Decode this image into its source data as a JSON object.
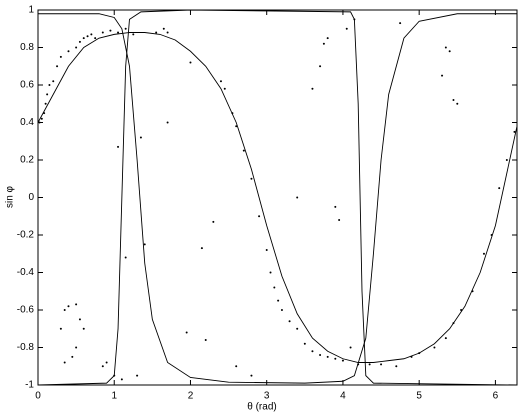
{
  "chart_data": {
    "type": "scatter",
    "xlabel": "θ (rad)",
    "ylabel": "sin φ",
    "xlim": [
      0,
      6.2832
    ],
    "ylim": [
      -1,
      1
    ],
    "xticks": [
      0,
      1,
      2,
      3,
      4,
      5,
      6
    ],
    "yticks": [
      -1,
      -0.8,
      -0.6,
      -0.4,
      -0.2,
      0,
      0.2,
      0.4,
      0.6,
      0.8,
      1
    ],
    "color": "#000000",
    "points": {
      "x": [
        0.02,
        0.05,
        0.08,
        0.1,
        0.12,
        0.15,
        0.2,
        0.25,
        0.3,
        0.4,
        0.5,
        0.55,
        0.6,
        0.65,
        0.7,
        0.75,
        0.85,
        0.95,
        1.05,
        1.15,
        1.25,
        1.55,
        1.65,
        1.7,
        2.0,
        2.4,
        2.45,
        2.55,
        2.6,
        2.7,
        2.8,
        2.9,
        3.0,
        3.05,
        3.1,
        3.15,
        3.2,
        3.3,
        3.4,
        3.5,
        3.6,
        3.7,
        3.8,
        3.9,
        4.0,
        4.2,
        4.35,
        4.5,
        4.9,
        5.0,
        5.2,
        5.35,
        5.45,
        5.55,
        5.7,
        5.85,
        5.95,
        6.05,
        6.15,
        6.25,
        0.35,
        0.4,
        0.3,
        0.45,
        0.5,
        0.5,
        0.55,
        0.6,
        0.35,
        0.85,
        0.9,
        1.0,
        1.1,
        1.05,
        1.15,
        1.35,
        1.4,
        1.3,
        1.7,
        2.15,
        2.3,
        2.6,
        2.8,
        1.95,
        2.2,
        3.4,
        3.6,
        3.7,
        3.75,
        3.8,
        3.9,
        3.95,
        4.05,
        4.15,
        4.75,
        5.3,
        5.35,
        5.4,
        5.45,
        5.5,
        4.1,
        4.7
      ],
      "values": [
        0.4,
        0.42,
        0.45,
        0.5,
        0.55,
        0.6,
        0.62,
        0.7,
        0.75,
        0.78,
        0.8,
        0.83,
        0.85,
        0.86,
        0.87,
        0.85,
        0.88,
        0.89,
        0.88,
        0.9,
        0.87,
        0.88,
        0.9,
        0.88,
        0.72,
        0.62,
        0.58,
        0.45,
        0.38,
        0.25,
        0.1,
        -0.1,
        -0.28,
        -0.4,
        -0.48,
        -0.55,
        -0.6,
        -0.66,
        -0.7,
        -0.78,
        -0.82,
        -0.84,
        -0.85,
        -0.86,
        -0.87,
        -0.89,
        -0.89,
        -0.89,
        -0.85,
        -0.83,
        -0.8,
        -0.75,
        -0.67,
        -0.6,
        -0.5,
        -0.3,
        -0.2,
        0.05,
        0.2,
        0.35,
        -0.6,
        -0.58,
        -0.7,
        -0.85,
        -0.8,
        -0.57,
        -0.65,
        -0.7,
        -0.88,
        -0.9,
        -0.88,
        -0.95,
        -0.97,
        0.27,
        -0.32,
        0.32,
        -0.25,
        -0.95,
        0.4,
        -0.27,
        -0.13,
        -0.9,
        -0.95,
        -0.72,
        -0.76,
        0.0,
        0.58,
        0.7,
        0.82,
        0.85,
        -0.05,
        -0.12,
        0.9,
        0.95,
        0.93,
        0.65,
        0.8,
        0.78,
        0.52,
        0.5,
        -0.8,
        -0.9
      ]
    },
    "lines": [
      {
        "x": [
          0,
          0.2,
          0.4,
          0.6,
          0.8,
          1.0,
          1.2,
          1.4,
          1.6,
          1.8,
          2.0,
          2.2,
          2.4,
          2.6,
          2.8,
          3.0,
          3.2,
          3.4,
          3.6,
          3.8,
          4.0,
          4.2,
          4.4,
          4.6,
          4.8,
          5.0,
          5.2,
          5.4,
          5.6,
          5.8,
          6.0,
          6.2832
        ],
        "values": [
          0.4,
          0.55,
          0.7,
          0.8,
          0.85,
          0.87,
          0.88,
          0.88,
          0.87,
          0.84,
          0.78,
          0.7,
          0.58,
          0.4,
          0.15,
          -0.15,
          -0.42,
          -0.62,
          -0.75,
          -0.82,
          -0.86,
          -0.88,
          -0.88,
          -0.87,
          -0.86,
          -0.83,
          -0.78,
          -0.7,
          -0.58,
          -0.4,
          -0.15,
          0.38
        ]
      },
      {
        "x": [
          0,
          0.8,
          1.0,
          1.1,
          1.2,
          1.3,
          1.4,
          1.5,
          1.7,
          2.0,
          2.5,
          3.5,
          4.0,
          4.15,
          4.3,
          4.4,
          4.5,
          4.6,
          4.8,
          5.0,
          5.5,
          6.2832
        ],
        "values": [
          0.98,
          0.98,
          0.96,
          0.9,
          0.7,
          0.2,
          -0.35,
          -0.65,
          -0.88,
          -0.96,
          -0.985,
          -0.99,
          -0.98,
          -0.95,
          -0.75,
          -0.3,
          0.2,
          0.55,
          0.85,
          0.94,
          0.98,
          0.98
        ]
      },
      {
        "x": [
          0,
          0.9,
          1.0,
          1.05,
          1.1,
          1.15,
          1.2,
          1.35,
          2.0,
          4.1,
          4.15,
          4.2,
          4.25,
          4.3,
          4.4,
          6.2832
        ],
        "values": [
          -1,
          -0.99,
          -0.95,
          -0.7,
          0,
          0.7,
          0.95,
          0.99,
          1.0,
          0.99,
          0.95,
          0.5,
          -0.5,
          -0.95,
          -0.99,
          -1.0
        ]
      }
    ]
  }
}
